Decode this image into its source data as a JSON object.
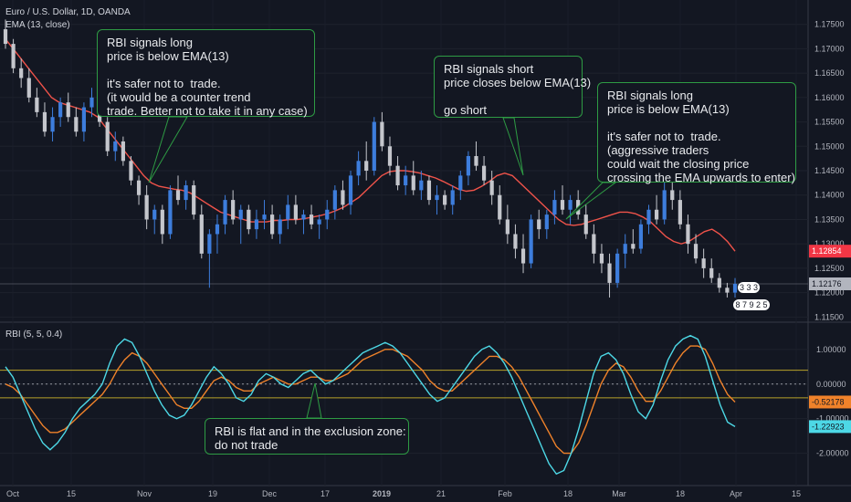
{
  "header": {
    "symbol_title": "Euro / U.S. Dollar, 1D, OANDA",
    "ema_legend": "EMA (13, close)",
    "rbi_legend": "RBI (5, 5, 0.4)"
  },
  "annotations": [
    {
      "text": "RBI signals long\nprice is below EMA(13)\n\nit's safer not to  trade.\n(it would be a counter trend\ntrade. Better not to take it in any case)"
    },
    {
      "text": "RBI signals short\nprice closes below EMA(13)\n\ngo short"
    },
    {
      "text": "RBI signals long\nprice is below EMA(13)\n\nit's safer not to  trade.\n(aggressive traders\ncould wait the closing price\ncrossing the EMA upwards to enter)"
    },
    {
      "text": "RBI is flat and in the exclusion zone:\ndo not trade"
    }
  ],
  "badges": {
    "a": "3 3 3",
    "b": "8 7  9 2 5"
  },
  "chart_data": [
    {
      "type": "candlestick",
      "price_axis": {
        "ticks": [
          "1.17500",
          "1.17000",
          "1.16500",
          "1.16000",
          "1.15500",
          "1.15000",
          "1.14500",
          "1.14000",
          "1.13500",
          "1.13000",
          "1.12500",
          "1.12000",
          "1.11500"
        ],
        "range": [
          1.1145,
          1.1785
        ]
      },
      "last_price_label": "1.12176",
      "ema_label": "1.12854",
      "x_axis": {
        "labels": [
          "Oct",
          "15",
          "Nov",
          "19",
          "Dec",
          "17",
          "2019",
          "21",
          "Feb",
          "18",
          "Mar",
          "18",
          "Apr",
          "15"
        ]
      },
      "ema": [
        1.172,
        1.17,
        1.168,
        1.166,
        1.164,
        1.162,
        1.16,
        1.159,
        1.1585,
        1.158,
        1.1575,
        1.157,
        1.156,
        1.154,
        1.152,
        1.15,
        1.148,
        1.146,
        1.144,
        1.1425,
        1.1418,
        1.1415,
        1.1412,
        1.141,
        1.1405,
        1.1395,
        1.1385,
        1.1375,
        1.1365,
        1.136,
        1.1355,
        1.135,
        1.1345,
        1.1345,
        1.1345,
        1.1348,
        1.1348,
        1.135,
        1.135,
        1.1352,
        1.1355,
        1.1358,
        1.1362,
        1.1368,
        1.1375,
        1.1385,
        1.1395,
        1.141,
        1.1425,
        1.144,
        1.1448,
        1.145,
        1.145,
        1.1448,
        1.1445,
        1.144,
        1.1435,
        1.1428,
        1.142,
        1.1412,
        1.1408,
        1.141,
        1.1418,
        1.1428,
        1.144,
        1.1445,
        1.144,
        1.1425,
        1.141,
        1.1395,
        1.138,
        1.1365,
        1.135,
        1.134,
        1.1338,
        1.134,
        1.1345,
        1.135,
        1.1355,
        1.136,
        1.1365,
        1.1365,
        1.1362,
        1.1355,
        1.1345,
        1.133,
        1.1315,
        1.1305,
        1.13,
        1.1305,
        1.1315,
        1.1325,
        1.133,
        1.132,
        1.1305,
        1.1285
      ],
      "candles": [
        [
          1.174,
          1.176,
          1.17,
          1.171
        ],
        [
          1.171,
          1.172,
          1.165,
          1.166
        ],
        [
          1.166,
          1.168,
          1.162,
          1.164
        ],
        [
          1.164,
          1.166,
          1.159,
          1.16
        ],
        [
          1.16,
          1.162,
          1.156,
          1.157
        ],
        [
          1.157,
          1.159,
          1.152,
          1.153
        ],
        [
          1.153,
          1.158,
          1.151,
          1.156
        ],
        [
          1.156,
          1.16,
          1.154,
          1.159
        ],
        [
          1.159,
          1.161,
          1.155,
          1.156
        ],
        [
          1.156,
          1.158,
          1.152,
          1.153
        ],
        [
          1.153,
          1.159,
          1.151,
          1.158
        ],
        [
          1.158,
          1.162,
          1.156,
          1.16
        ],
        [
          1.16,
          1.161,
          1.154,
          1.155
        ],
        [
          1.155,
          1.156,
          1.148,
          1.149
        ],
        [
          1.149,
          1.153,
          1.147,
          1.151
        ],
        [
          1.151,
          1.152,
          1.146,
          1.147
        ],
        [
          1.147,
          1.148,
          1.142,
          1.143
        ],
        [
          1.143,
          1.144,
          1.138,
          1.14
        ],
        [
          1.14,
          1.142,
          1.133,
          1.135
        ],
        [
          1.135,
          1.138,
          1.132,
          1.137
        ],
        [
          1.137,
          1.138,
          1.13,
          1.132
        ],
        [
          1.132,
          1.142,
          1.131,
          1.141
        ],
        [
          1.141,
          1.144,
          1.138,
          1.139
        ],
        [
          1.139,
          1.143,
          1.137,
          1.142
        ],
        [
          1.142,
          1.143,
          1.135,
          1.136
        ],
        [
          1.136,
          1.138,
          1.127,
          1.128
        ],
        [
          1.128,
          1.133,
          1.121,
          1.132
        ],
        [
          1.132,
          1.136,
          1.128,
          1.134
        ],
        [
          1.134,
          1.14,
          1.132,
          1.139
        ],
        [
          1.139,
          1.141,
          1.134,
          1.135
        ],
        [
          1.135,
          1.138,
          1.13,
          1.137
        ],
        [
          1.137,
          1.138,
          1.132,
          1.133
        ],
        [
          1.133,
          1.137,
          1.131,
          1.135
        ],
        [
          1.135,
          1.139,
          1.133,
          1.136
        ],
        [
          1.136,
          1.138,
          1.131,
          1.132
        ],
        [
          1.132,
          1.136,
          1.13,
          1.135
        ],
        [
          1.135,
          1.14,
          1.133,
          1.138
        ],
        [
          1.138,
          1.14,
          1.134,
          1.135
        ],
        [
          1.135,
          1.137,
          1.132,
          1.136
        ],
        [
          1.136,
          1.138,
          1.133,
          1.134
        ],
        [
          1.134,
          1.136,
          1.131,
          1.135
        ],
        [
          1.135,
          1.139,
          1.133,
          1.137
        ],
        [
          1.137,
          1.142,
          1.135,
          1.141
        ],
        [
          1.141,
          1.143,
          1.137,
          1.138
        ],
        [
          1.138,
          1.145,
          1.136,
          1.144
        ],
        [
          1.144,
          1.149,
          1.142,
          1.147
        ],
        [
          1.147,
          1.151,
          1.143,
          1.145
        ],
        [
          1.145,
          1.156,
          1.144,
          1.155
        ],
        [
          1.155,
          1.157,
          1.149,
          1.15
        ],
        [
          1.15,
          1.152,
          1.144,
          1.146
        ],
        [
          1.146,
          1.148,
          1.141,
          1.142
        ],
        [
          1.142,
          1.146,
          1.14,
          1.144
        ],
        [
          1.144,
          1.147,
          1.14,
          1.141
        ],
        [
          1.141,
          1.145,
          1.139,
          1.143
        ],
        [
          1.143,
          1.144,
          1.138,
          1.139
        ],
        [
          1.139,
          1.142,
          1.136,
          1.14
        ],
        [
          1.14,
          1.141,
          1.137,
          1.138
        ],
        [
          1.138,
          1.142,
          1.136,
          1.141
        ],
        [
          1.141,
          1.145,
          1.139,
          1.144
        ],
        [
          1.144,
          1.149,
          1.142,
          1.148
        ],
        [
          1.148,
          1.151,
          1.145,
          1.146
        ],
        [
          1.146,
          1.148,
          1.142,
          1.143
        ],
        [
          1.143,
          1.145,
          1.138,
          1.14
        ],
        [
          1.14,
          1.142,
          1.134,
          1.135
        ],
        [
          1.135,
          1.138,
          1.13,
          1.132
        ],
        [
          1.132,
          1.134,
          1.127,
          1.129
        ],
        [
          1.129,
          1.132,
          1.124,
          1.126
        ],
        [
          1.126,
          1.136,
          1.125,
          1.135
        ],
        [
          1.135,
          1.137,
          1.131,
          1.133
        ],
        [
          1.133,
          1.137,
          1.131,
          1.136
        ],
        [
          1.136,
          1.141,
          1.134,
          1.139
        ],
        [
          1.139,
          1.142,
          1.136,
          1.137
        ],
        [
          1.137,
          1.14,
          1.134,
          1.139
        ],
        [
          1.139,
          1.141,
          1.135,
          1.136
        ],
        [
          1.136,
          1.138,
          1.131,
          1.132
        ],
        [
          1.132,
          1.134,
          1.126,
          1.128
        ],
        [
          1.128,
          1.13,
          1.124,
          1.126
        ],
        [
          1.126,
          1.128,
          1.119,
          1.122
        ],
        [
          1.122,
          1.129,
          1.121,
          1.128
        ],
        [
          1.128,
          1.132,
          1.125,
          1.13
        ],
        [
          1.13,
          1.133,
          1.128,
          1.129
        ],
        [
          1.129,
          1.135,
          1.128,
          1.134
        ],
        [
          1.134,
          1.138,
          1.132,
          1.137
        ],
        [
          1.137,
          1.14,
          1.134,
          1.135
        ],
        [
          1.135,
          1.143,
          1.134,
          1.141
        ],
        [
          1.141,
          1.144,
          1.137,
          1.139
        ],
        [
          1.139,
          1.141,
          1.133,
          1.134
        ],
        [
          1.134,
          1.136,
          1.128,
          1.13
        ],
        [
          1.13,
          1.132,
          1.126,
          1.127
        ],
        [
          1.127,
          1.129,
          1.123,
          1.125
        ],
        [
          1.125,
          1.127,
          1.122,
          1.123
        ],
        [
          1.123,
          1.124,
          1.12,
          1.121
        ],
        [
          1.121,
          1.122,
          1.119,
          1.12
        ],
        [
          1.12,
          1.123,
          1.119,
          1.1218
        ]
      ]
    },
    {
      "type": "line",
      "name": "RBI (5, 5, 0.4)",
      "y_axis": {
        "ticks": [
          "1.00000",
          "0.00000",
          "-1.00000",
          "-2.00000"
        ],
        "range": [
          -2.75,
          1.55
        ]
      },
      "threshold_levels": [
        0.4,
        -0.4
      ],
      "rbi_label": "-1.22923",
      "signal_label": "-0.52178",
      "rbi": [
        0.5,
        0.2,
        -0.3,
        -0.8,
        -1.3,
        -1.7,
        -1.9,
        -1.7,
        -1.4,
        -1.0,
        -0.7,
        -0.5,
        -0.3,
        0.0,
        0.6,
        1.1,
        1.3,
        1.2,
        0.8,
        0.3,
        -0.2,
        -0.6,
        -0.9,
        -1.0,
        -0.9,
        -0.6,
        -0.2,
        0.2,
        0.5,
        0.3,
        0.0,
        -0.4,
        -0.5,
        -0.3,
        0.1,
        0.3,
        0.2,
        0.0,
        -0.1,
        0.1,
        0.3,
        0.4,
        0.2,
        0.0,
        0.1,
        0.3,
        0.5,
        0.7,
        0.9,
        1.0,
        1.1,
        1.2,
        1.1,
        0.9,
        0.6,
        0.3,
        0.0,
        -0.3,
        -0.5,
        -0.4,
        -0.1,
        0.2,
        0.5,
        0.8,
        1.0,
        1.1,
        0.9,
        0.6,
        0.2,
        -0.3,
        -0.8,
        -1.3,
        -1.8,
        -2.3,
        -2.6,
        -2.5,
        -2.0,
        -1.3,
        -0.5,
        0.3,
        0.8,
        0.9,
        0.7,
        0.3,
        -0.3,
        -0.8,
        -1.0,
        -0.6,
        0.1,
        0.7,
        1.1,
        1.3,
        1.4,
        1.3,
        0.8,
        0.1,
        -0.6,
        -1.1,
        -1.23
      ],
      "signal": [
        0.0,
        -0.1,
        -0.3,
        -0.6,
        -0.9,
        -1.2,
        -1.4,
        -1.4,
        -1.3,
        -1.1,
        -0.9,
        -0.7,
        -0.5,
        -0.3,
        0.0,
        0.4,
        0.7,
        0.9,
        0.8,
        0.6,
        0.3,
        0.0,
        -0.3,
        -0.6,
        -0.7,
        -0.7,
        -0.5,
        -0.2,
        0.1,
        0.2,
        0.1,
        -0.1,
        -0.2,
        -0.2,
        0.0,
        0.1,
        0.2,
        0.1,
        0.0,
        0.0,
        0.1,
        0.2,
        0.2,
        0.1,
        0.1,
        0.2,
        0.3,
        0.5,
        0.7,
        0.8,
        0.9,
        1.0,
        1.0,
        0.9,
        0.8,
        0.6,
        0.4,
        0.1,
        -0.1,
        -0.2,
        -0.2,
        0.0,
        0.2,
        0.4,
        0.6,
        0.8,
        0.8,
        0.7,
        0.5,
        0.2,
        -0.2,
        -0.6,
        -1.0,
        -1.4,
        -1.8,
        -2.0,
        -2.0,
        -1.7,
        -1.2,
        -0.6,
        0.0,
        0.4,
        0.6,
        0.5,
        0.2,
        -0.2,
        -0.5,
        -0.5,
        -0.2,
        0.2,
        0.6,
        0.9,
        1.1,
        1.1,
        1.0,
        0.6,
        0.1,
        -0.3,
        -0.52
      ]
    }
  ]
}
